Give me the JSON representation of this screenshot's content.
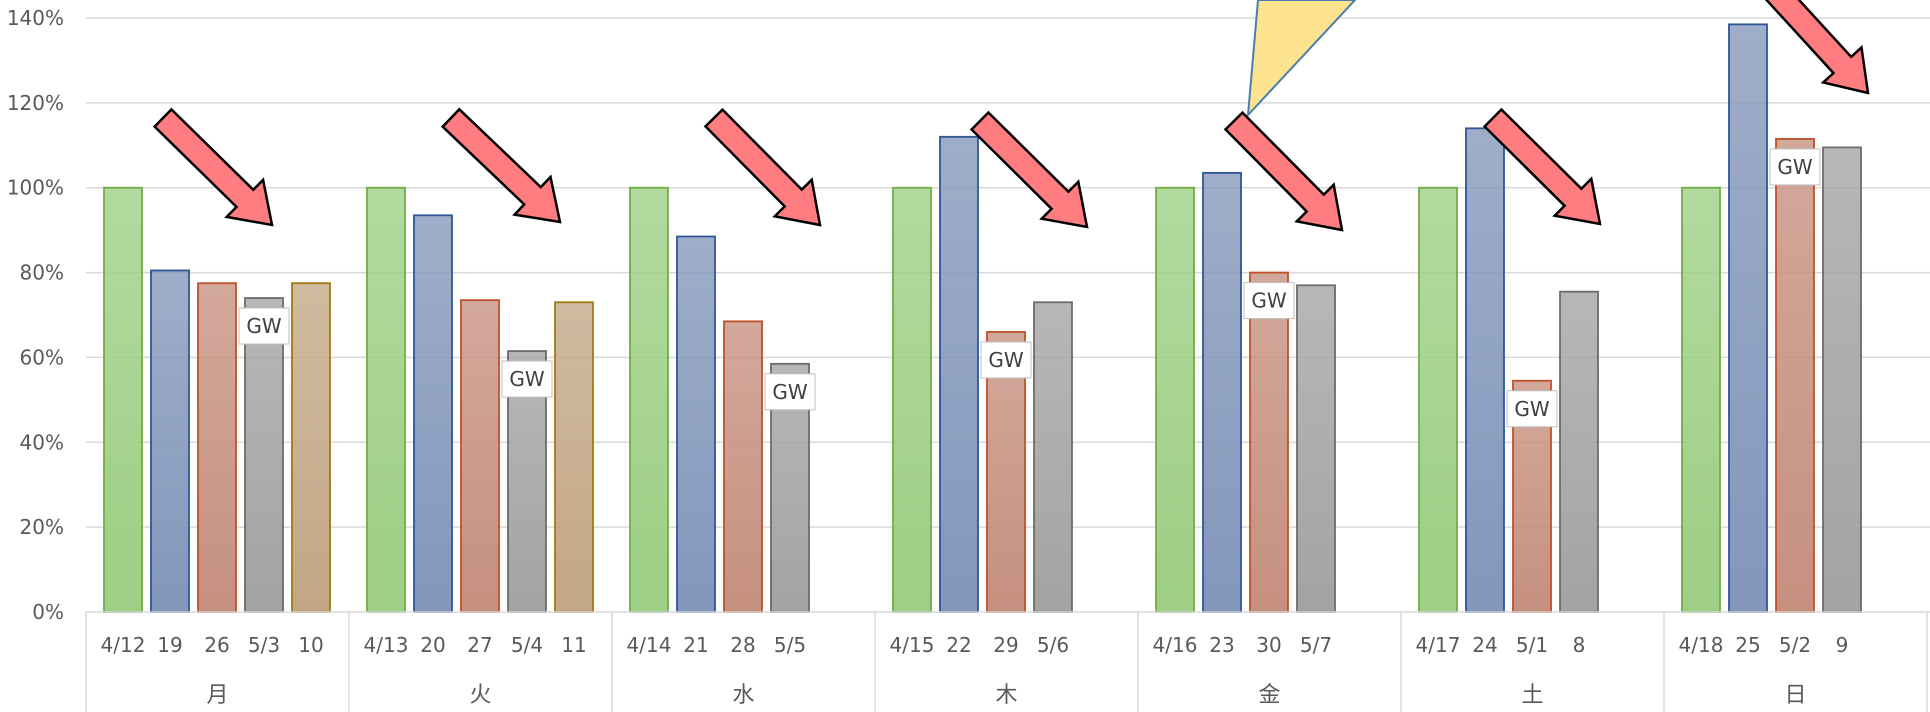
{
  "chart_data": {
    "type": "bar",
    "ylim": [
      0,
      1.4
    ],
    "yticks": [
      "0%",
      "20%",
      "40%",
      "60%",
      "80%",
      "100%",
      "120%",
      "140%"
    ],
    "grid": true,
    "colors": {
      "green": "#9dcf84",
      "blue": "#8397bb",
      "red": "#c6907f",
      "gray": "#a3a3a3",
      "tan": "#c3a785",
      "arrow": "#ff7c80",
      "callout": "#fde390"
    },
    "groups": [
      {
        "name": "月",
        "bars": [
          {
            "label": "4/12",
            "value": 1.0,
            "color": "green"
          },
          {
            "label": "19",
            "value": 0.805,
            "color": "blue"
          },
          {
            "label": "26",
            "value": 0.775,
            "color": "red"
          },
          {
            "label": "5/3",
            "value": 0.74,
            "color": "gray",
            "gw": "GW"
          },
          {
            "label": "10",
            "value": 0.775,
            "color": "tan"
          }
        ]
      },
      {
        "name": "火",
        "bars": [
          {
            "label": "4/13",
            "value": 1.0,
            "color": "green"
          },
          {
            "label": "20",
            "value": 0.935,
            "color": "blue"
          },
          {
            "label": "27",
            "value": 0.735,
            "color": "red"
          },
          {
            "label": "5/4",
            "value": 0.615,
            "color": "gray",
            "gw": "GW"
          },
          {
            "label": "11",
            "value": 0.73,
            "color": "tan"
          }
        ]
      },
      {
        "name": "水",
        "bars": [
          {
            "label": "4/14",
            "value": 1.0,
            "color": "green"
          },
          {
            "label": "21",
            "value": 0.885,
            "color": "blue"
          },
          {
            "label": "28",
            "value": 0.685,
            "color": "red"
          },
          {
            "label": "5/5",
            "value": 0.585,
            "color": "gray",
            "gw": "GW"
          }
        ]
      },
      {
        "name": "木",
        "bars": [
          {
            "label": "4/15",
            "value": 1.0,
            "color": "green"
          },
          {
            "label": "22",
            "value": 1.12,
            "color": "blue"
          },
          {
            "label": "29",
            "value": 0.66,
            "color": "red",
            "gw": "GW"
          },
          {
            "label": "5/6",
            "value": 0.73,
            "color": "gray"
          }
        ]
      },
      {
        "name": "金",
        "bars": [
          {
            "label": "4/16",
            "value": 1.0,
            "color": "green"
          },
          {
            "label": "23",
            "value": 1.035,
            "color": "blue"
          },
          {
            "label": "30",
            "value": 0.8,
            "color": "red",
            "gw": "GW"
          },
          {
            "label": "5/7",
            "value": 0.77,
            "color": "gray"
          }
        ]
      },
      {
        "name": "土",
        "bars": [
          {
            "label": "4/17",
            "value": 1.0,
            "color": "green"
          },
          {
            "label": "24",
            "value": 1.14,
            "color": "blue"
          },
          {
            "label": "5/1",
            "value": 0.545,
            "color": "red",
            "gw": "GW"
          },
          {
            "label": "8",
            "value": 0.755,
            "color": "gray"
          }
        ]
      },
      {
        "name": "日",
        "bars": [
          {
            "label": "4/18",
            "value": 1.0,
            "color": "green"
          },
          {
            "label": "25",
            "value": 1.385,
            "color": "blue"
          },
          {
            "label": "5/2",
            "value": 1.115,
            "color": "red",
            "gw": "GW"
          },
          {
            "label": "9",
            "value": 1.095,
            "color": "gray"
          }
        ]
      }
    ]
  }
}
